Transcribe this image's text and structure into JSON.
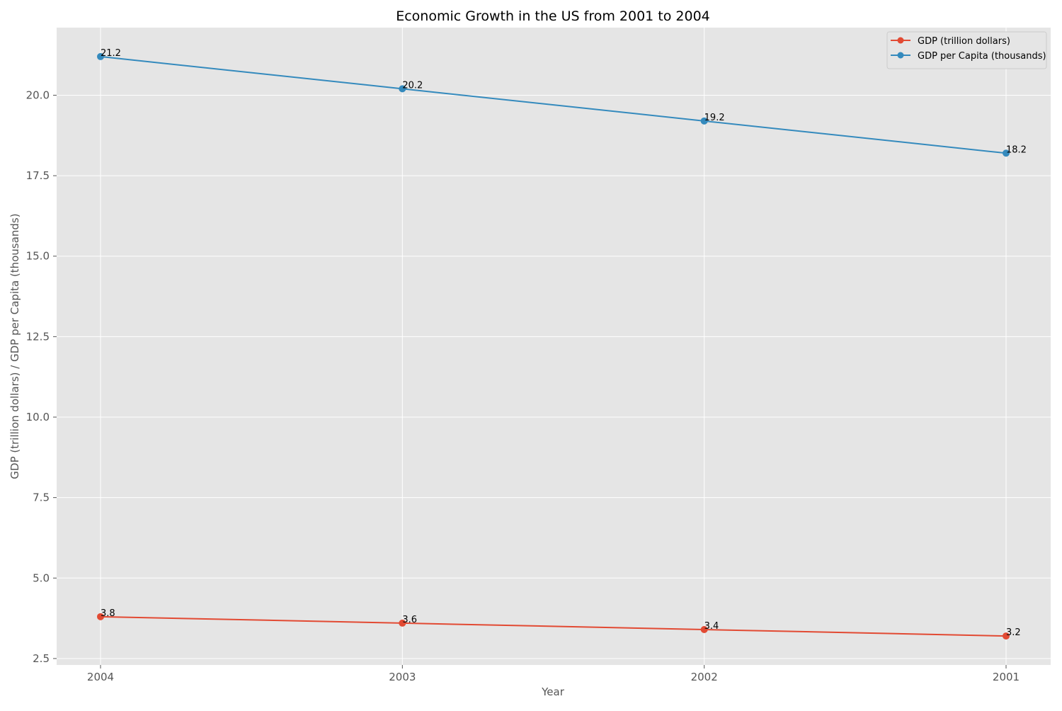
{
  "chart_data": {
    "type": "line",
    "title": "Economic Growth in the US from 2001 to 2004",
    "xlabel": "Year",
    "ylabel": "GDP (trillion dollars) / GDP per Capita (thousands)",
    "categories": [
      "2004",
      "2003",
      "2002",
      "2001"
    ],
    "ylim": [
      2.3,
      22.1
    ],
    "y_ticks": [
      2.5,
      5.0,
      7.5,
      10.0,
      12.5,
      15.0,
      17.5,
      20.0
    ],
    "y_tick_labels": [
      "2.5",
      "5.0",
      "7.5",
      "10.0",
      "12.5",
      "15.0",
      "17.5",
      "20.0"
    ],
    "grid": true,
    "legend_position": "top-right",
    "series": [
      {
        "name": "GDP (trillion dollars)",
        "values": [
          3.8,
          3.6,
          3.4,
          3.2
        ],
        "labels": [
          "3.8",
          "3.6",
          "3.4",
          "3.2"
        ],
        "color": "#E24A33"
      },
      {
        "name": "GDP per Capita (thousands)",
        "values": [
          21.2,
          20.2,
          19.2,
          18.2
        ],
        "labels": [
          "21.2",
          "20.2",
          "19.2",
          "18.2"
        ],
        "color": "#348ABD"
      }
    ],
    "colors": {
      "plot_background": "#E5E5E5",
      "grid": "#FFFFFF",
      "tick_label": "#555555",
      "text": "#000000"
    }
  }
}
